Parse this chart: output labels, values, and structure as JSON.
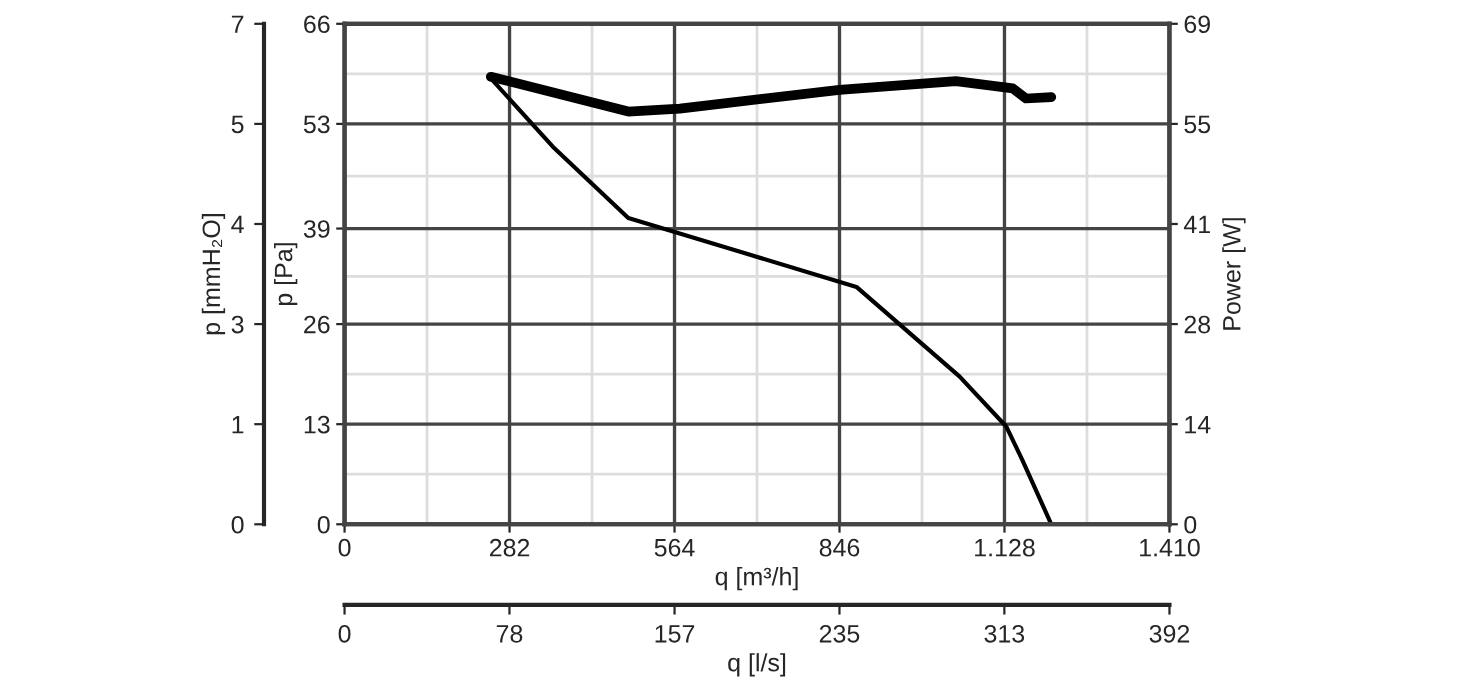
{
  "chart_data": {
    "type": "line",
    "xlabel": "q [m³/h]",
    "ylabel": "p [Pa]",
    "y2label": "Power [W]",
    "y3label": "p [mmH₂O]",
    "x2label": "q [l/s]",
    "xlim": [
      0,
      1410
    ],
    "xticks": [
      0,
      282,
      564,
      846,
      {
        "value": 1128,
        "label": "1.128"
      },
      {
        "value": 1410,
        "label": "1.410"
      }
    ],
    "ylim": [
      0,
      66
    ],
    "yticks": [
      0,
      {
        "value": 13.2,
        "label": "13"
      },
      {
        "value": 26.4,
        "label": "26"
      },
      39,
      {
        "value": 52.8,
        "label": "53"
      },
      66
    ],
    "y2lim": [
      0,
      69
    ],
    "y2ticks": [
      0,
      {
        "value": 13.8,
        "label": "14"
      },
      {
        "value": 27.6,
        "label": "28"
      },
      {
        "value": 41.4,
        "label": "41"
      },
      {
        "value": 55.2,
        "label": "55"
      },
      69
    ],
    "y3lim": [
      0,
      6.73
    ],
    "y3ticks": [
      0,
      {
        "value": 1.346,
        "label": "1"
      },
      {
        "value": 2.692,
        "label": "3"
      },
      {
        "value": 4.038,
        "label": "4"
      },
      {
        "value": 5.384,
        "label": "5"
      },
      {
        "value": 6.73,
        "label": "7"
      }
    ],
    "x2lim": [
      0,
      391.7
    ],
    "x2ticks": [
      0,
      {
        "value": 78.3,
        "label": "78"
      },
      {
        "value": 156.7,
        "label": "157"
      },
      235,
      {
        "value": 313.3,
        "label": "313"
      },
      {
        "value": 391.7,
        "label": "392"
      }
    ],
    "grid": true,
    "series": [
      {
        "color": "#000000",
        "x": [
          250,
          356,
          485,
          875,
          1051,
          1131,
          1159,
          1208
        ],
        "values": [
          58.8,
          49.8,
          40.4,
          31.3,
          19.5,
          12.9,
          8.4,
          0
        ]
      },
      {
        "color": "#000000",
        "axis": "y2",
        "x": [
          250,
          485,
          573,
          846,
          1045,
          1142,
          1165,
          1208
        ],
        "values": [
          61.7,
          56.9,
          57.3,
          59.9,
          61.1,
          60.1,
          58.7,
          58.9
        ]
      }
    ]
  }
}
